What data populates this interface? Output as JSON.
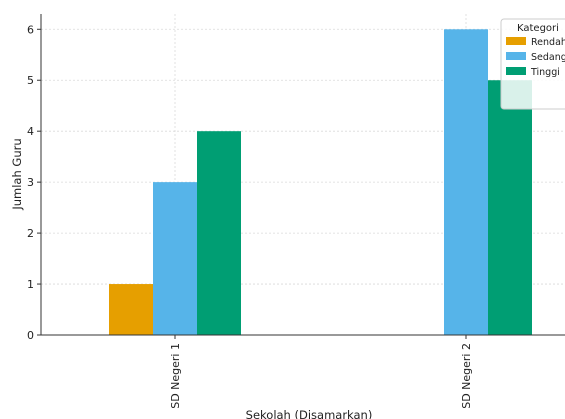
{
  "chart_data": {
    "type": "bar",
    "title": "",
    "xlabel": "Sekolah (Disamarkan)",
    "ylabel": "Jumlah Guru",
    "categories": [
      "SD Negeri 1",
      "SD Negeri 2"
    ],
    "series": [
      {
        "name": "Rendah",
        "values": [
          1,
          0
        ],
        "color": "#E69F00"
      },
      {
        "name": "Sedang",
        "values": [
          3,
          6
        ],
        "color": "#56B4E9"
      },
      {
        "name": "Tinggi",
        "values": [
          4,
          5
        ],
        "color": "#009E73"
      }
    ],
    "yticks": [
      0,
      1,
      2,
      3,
      4,
      5,
      6
    ],
    "ylim": [
      0,
      6.3
    ],
    "grid": true,
    "legend": {
      "title": "Kategori",
      "position": "top-right"
    }
  }
}
